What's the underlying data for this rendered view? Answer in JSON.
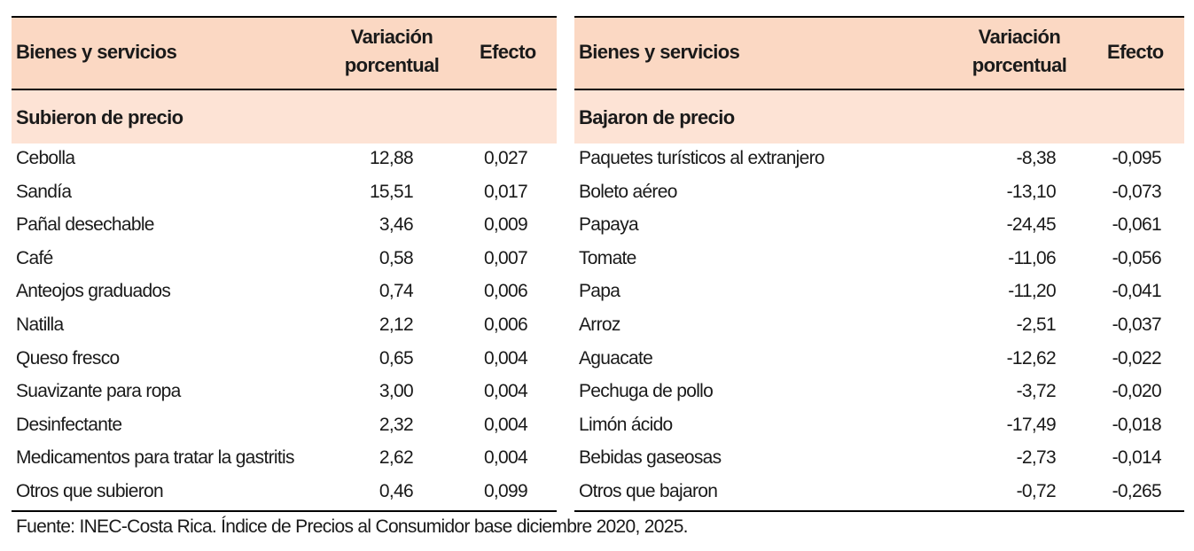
{
  "left_table": {
    "header": {
      "name": "Bienes y servicios",
      "var_line1": "Variación",
      "var_line2": "porcentual",
      "effect": "Efecto"
    },
    "section_label": "Subieron de precio",
    "rows": [
      {
        "name": "Cebolla",
        "variation": "12,88",
        "effect": "0,027"
      },
      {
        "name": "Sandía",
        "variation": "15,51",
        "effect": "0,017"
      },
      {
        "name": "Pañal desechable",
        "variation": "3,46",
        "effect": "0,009"
      },
      {
        "name": "Café",
        "variation": "0,58",
        "effect": "0,007"
      },
      {
        "name": "Anteojos graduados",
        "variation": "0,74",
        "effect": "0,006"
      },
      {
        "name": "Natilla",
        "variation": "2,12",
        "effect": "0,006"
      },
      {
        "name": "Queso fresco",
        "variation": "0,65",
        "effect": "0,004"
      },
      {
        "name": "Suavizante para ropa",
        "variation": "3,00",
        "effect": "0,004"
      },
      {
        "name": "Desinfectante",
        "variation": "2,32",
        "effect": "0,004"
      },
      {
        "name": "Medicamentos para tratar la gastritis",
        "variation": "2,62",
        "effect": "0,004"
      },
      {
        "name": "Otros que subieron",
        "variation": "0,46",
        "effect": "0,099"
      }
    ]
  },
  "right_table": {
    "header": {
      "name": "Bienes y servicios",
      "var_line1": "Variación",
      "var_line2": "porcentual",
      "effect": "Efecto"
    },
    "section_label": "Bajaron de precio",
    "rows": [
      {
        "name": "Paquetes turísticos al extranjero",
        "variation": "-8,38",
        "effect": "-0,095"
      },
      {
        "name": "Boleto aéreo",
        "variation": "-13,10",
        "effect": "-0,073"
      },
      {
        "name": "Papaya",
        "variation": "-24,45",
        "effect": "-0,061"
      },
      {
        "name": "Tomate",
        "variation": "-11,06",
        "effect": "-0,056"
      },
      {
        "name": "Papa",
        "variation": "-11,20",
        "effect": "-0,041"
      },
      {
        "name": "Arroz",
        "variation": "-2,51",
        "effect": "-0,037"
      },
      {
        "name": "Aguacate",
        "variation": "-12,62",
        "effect": "-0,022"
      },
      {
        "name": "Pechuga de pollo",
        "variation": "-3,72",
        "effect": "-0,020"
      },
      {
        "name": "Limón ácido",
        "variation": "-17,49",
        "effect": "-0,018"
      },
      {
        "name": "Bebidas gaseosas",
        "variation": "-2,73",
        "effect": "-0,014"
      },
      {
        "name": "Otros que bajaron",
        "variation": "-0,72",
        "effect": "-0,265"
      }
    ]
  },
  "source_note": "Fuente: INEC-Costa Rica. Índice de Precios al Consumidor base diciembre 2020, 2025.",
  "colors": {
    "header_bg": "#fbd8c3",
    "section_bg": "#fde3d5",
    "rule": "#000000"
  }
}
